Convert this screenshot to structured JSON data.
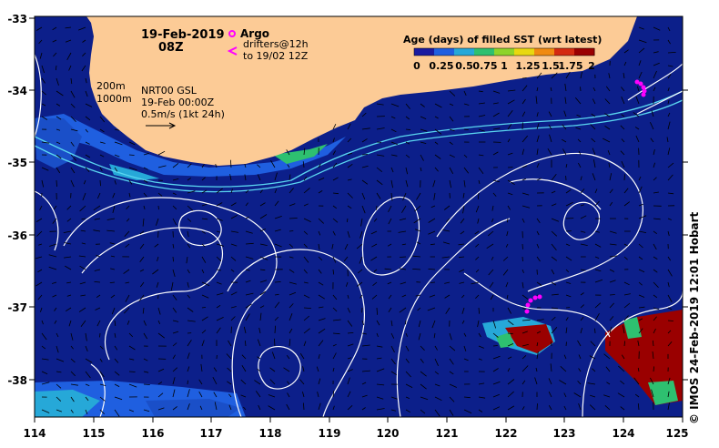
{
  "header": {
    "date": "19-Feb-2019",
    "time": "08Z",
    "argo_label": "Argo",
    "drifters_label": "drifters@12h",
    "drifters_range": "to 19/02 12Z",
    "isobath_1": "200m",
    "isobath_2": "1000m",
    "product": "NRT00 GSL",
    "product_time": "19-Feb 00:00Z",
    "scale_label": "0.5m/s (1kt 24h)"
  },
  "colorbar": {
    "title": "Age (days) of filled SST (wrt latest)",
    "ticks": [
      "0",
      "0.25",
      "0.5",
      "0.75",
      "1",
      "1.25",
      "1.5",
      "1.75",
      "2"
    ],
    "colors": [
      "#1a1aa0",
      "#1f5fe0",
      "#26a8d8",
      "#2ec070",
      "#8ed42a",
      "#e8d810",
      "#f08a10",
      "#d42a10",
      "#9a0000"
    ]
  },
  "axes": {
    "x_ticks": [
      "114",
      "115",
      "116",
      "117",
      "118",
      "119",
      "120",
      "121",
      "122",
      "123",
      "124",
      "125"
    ],
    "y_ticks": [
      "-33",
      "-34",
      "-35",
      "-36",
      "-37",
      "-38"
    ]
  },
  "credit": "© IMOS 24-Feb-2019 12:01 Hobart",
  "colors": {
    "land": "#fccb96",
    "ocean": "#0c1f8a",
    "contour": "#ffffff",
    "isobath": "#5ad6f0",
    "drifter": "#ff00ff",
    "red_patch": "#9a0000"
  }
}
